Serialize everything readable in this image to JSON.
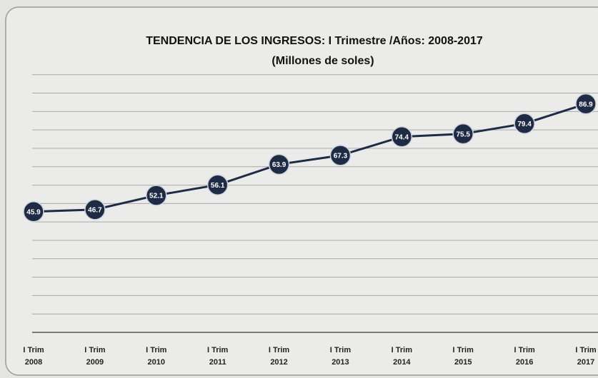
{
  "chart_data": {
    "type": "line",
    "title": "TENDENCIA DE LOS INGRESOS: I Trimestre /Años: 2008-2017",
    "subtitle": "(Millones de soles)",
    "categories": [
      [
        "I Trim",
        "2008"
      ],
      [
        "I Trim",
        "2009"
      ],
      [
        "I Trim",
        "2010"
      ],
      [
        "I Trim",
        "2011"
      ],
      [
        "I Trim",
        "2012"
      ],
      [
        "I Trim",
        "2013"
      ],
      [
        "I Trim",
        "2014"
      ],
      [
        "I Trim",
        "2015"
      ],
      [
        "I Trim",
        "2016"
      ],
      [
        "I Trim",
        "2017"
      ]
    ],
    "values": [
      45.9,
      46.7,
      52.1,
      56.1,
      63.9,
      67.3,
      74.4,
      75.5,
      79.4,
      86.9
    ],
    "color": "#1f2b45",
    "ylim": [
      0,
      102
    ],
    "yticks": [
      0,
      7,
      14,
      21,
      28,
      35,
      42,
      49,
      56,
      63,
      70,
      77,
      84,
      91,
      98
    ],
    "grid": true
  }
}
